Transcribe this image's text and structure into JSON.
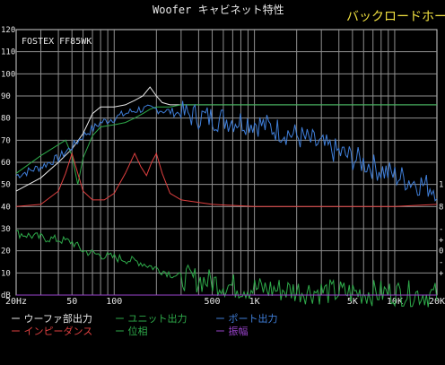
{
  "title": "Woofer キャビネット特性",
  "subtitle": "バックロードホーン",
  "chart_data": {
    "type": "line",
    "title": "Woofer キャビネット特性",
    "subtitle": "バックロードホーン",
    "annotation": "FOSTEX FF85WK",
    "x_scale": "log",
    "xlim": [
      20,
      20000
    ],
    "ylim": [
      0,
      120
    ],
    "grid": true,
    "x_tick_labels": [
      {
        "v": 20,
        "t": "20Hz"
      },
      {
        "v": 50,
        "t": "50"
      },
      {
        "v": 100,
        "t": "100"
      },
      {
        "v": 500,
        "t": "500"
      },
      {
        "v": 1000,
        "t": "1K"
      },
      {
        "v": 5000,
        "t": "5K"
      },
      {
        "v": 10000,
        "t": "10K"
      },
      {
        "v": 20000,
        "t": "20K"
      }
    ],
    "y_tick_labels": [
      {
        "v": 120,
        "t": "120"
      },
      {
        "v": 110,
        "t": "110"
      },
      {
        "v": 100,
        "t": "100"
      },
      {
        "v": 90,
        "t": "90"
      },
      {
        "v": 80,
        "t": "80"
      },
      {
        "v": 70,
        "t": "70"
      },
      {
        "v": 60,
        "t": "60"
      },
      {
        "v": 50,
        "t": "50"
      },
      {
        "v": 40,
        "t": "40"
      },
      {
        "v": 30,
        "t": "30"
      },
      {
        "v": 20,
        "t": "20"
      },
      {
        "v": 10,
        "t": "10"
      },
      {
        "v": 0,
        "t": "dB"
      }
    ],
    "right_tick_labels": [
      {
        "v": 50,
        "t": "1"
      },
      {
        "v": 40,
        "t": "8"
      },
      {
        "v": 30,
        "t": "-"
      },
      {
        "v": 25,
        "t": "+"
      },
      {
        "v": 20,
        "t": "0"
      },
      {
        "v": 15,
        "t": "-"
      },
      {
        "v": 10,
        "t": "+"
      }
    ],
    "series": [
      {
        "name": "ウーファ部出力",
        "color": "#e8e8e8",
        "style": "smooth",
        "points": [
          [
            20,
            47
          ],
          [
            30,
            53
          ],
          [
            40,
            60
          ],
          [
            50,
            66
          ],
          [
            60,
            73
          ],
          [
            70,
            82
          ],
          [
            80,
            85
          ],
          [
            100,
            85
          ],
          [
            120,
            86
          ],
          [
            140,
            88
          ],
          [
            160,
            90
          ],
          [
            180,
            94
          ],
          [
            200,
            90
          ],
          [
            220,
            87
          ],
          [
            250,
            86
          ],
          [
            300,
            86
          ],
          [
            350,
            86
          ],
          [
            400,
            86
          ],
          [
            500,
            86
          ],
          [
            700,
            86
          ],
          [
            1000,
            86
          ],
          [
            2000,
            86
          ],
          [
            5000,
            86
          ],
          [
            10000,
            86
          ],
          [
            20000,
            86
          ]
        ]
      },
      {
        "name": "ユニット出力",
        "color": "#2eaa4a",
        "style": "smooth",
        "points": [
          [
            20,
            55
          ],
          [
            30,
            63
          ],
          [
            40,
            68
          ],
          [
            45,
            70
          ],
          [
            50,
            63
          ],
          [
            55,
            50
          ],
          [
            60,
            62
          ],
          [
            70,
            72
          ],
          [
            80,
            76
          ],
          [
            100,
            77
          ],
          [
            120,
            78
          ],
          [
            140,
            80
          ],
          [
            160,
            82
          ],
          [
            180,
            84
          ],
          [
            200,
            85
          ],
          [
            250,
            85
          ],
          [
            300,
            86
          ],
          [
            500,
            86
          ],
          [
            1000,
            86
          ],
          [
            20000,
            86
          ]
        ]
      },
      {
        "name": "ポート出力",
        "color": "#3f7ed8",
        "style": "jagged",
        "points": [
          [
            20,
            54
          ],
          [
            30,
            58
          ],
          [
            40,
            62
          ],
          [
            50,
            67
          ],
          [
            60,
            72
          ],
          [
            70,
            75
          ],
          [
            80,
            78
          ],
          [
            100,
            80
          ],
          [
            120,
            82
          ],
          [
            150,
            84
          ],
          [
            200,
            84
          ],
          [
            300,
            82
          ],
          [
            500,
            80
          ],
          [
            1000,
            78
          ],
          [
            2000,
            72
          ],
          [
            5000,
            62
          ],
          [
            10000,
            54
          ],
          [
            20000,
            48
          ]
        ]
      },
      {
        "name": "インピーダンス",
        "color": "#e04040",
        "style": "smooth",
        "points": [
          [
            20,
            40
          ],
          [
            30,
            41
          ],
          [
            40,
            47
          ],
          [
            45,
            55
          ],
          [
            50,
            64
          ],
          [
            55,
            55
          ],
          [
            60,
            47
          ],
          [
            70,
            43
          ],
          [
            85,
            43
          ],
          [
            100,
            46
          ],
          [
            120,
            55
          ],
          [
            140,
            64
          ],
          [
            155,
            58
          ],
          [
            170,
            54
          ],
          [
            185,
            60
          ],
          [
            200,
            64
          ],
          [
            220,
            55
          ],
          [
            250,
            46
          ],
          [
            300,
            43
          ],
          [
            500,
            41
          ],
          [
            1000,
            40
          ],
          [
            2000,
            40
          ],
          [
            5000,
            40
          ],
          [
            10000,
            40
          ],
          [
            20000,
            41
          ]
        ]
      },
      {
        "name": "位相",
        "color": "#2eaa4a",
        "style": "jagged",
        "points": [
          [
            20,
            28
          ],
          [
            30,
            26
          ],
          [
            40,
            25
          ],
          [
            50,
            24
          ],
          [
            60,
            20
          ],
          [
            80,
            18
          ],
          [
            100,
            17
          ],
          [
            150,
            15
          ],
          [
            200,
            12
          ],
          [
            300,
            8
          ],
          [
            500,
            6
          ],
          [
            700,
            4
          ],
          [
            1000,
            3
          ],
          [
            2000,
            2
          ],
          [
            5000,
            1
          ],
          [
            10000,
            1
          ],
          [
            20000,
            0
          ]
        ]
      },
      {
        "name": "振幅",
        "color": "#9a44cc",
        "style": "smooth",
        "points": [
          [
            20,
            0
          ],
          [
            100,
            0
          ],
          [
            1000,
            0
          ],
          [
            20000,
            0
          ]
        ]
      }
    ]
  },
  "legend": [
    {
      "text": "ー ウーファ部出力",
      "color": "#e8e8e8"
    },
    {
      "text": "ー ユニット出力",
      "color": "#2eaa4a"
    },
    {
      "text": "ー ポート出力",
      "color": "#3f7ed8"
    },
    {
      "text": "ー インピーダンス",
      "color": "#e04040"
    },
    {
      "text": "ー 位相",
      "color": "#2eaa4a"
    },
    {
      "text": "ー 振幅",
      "color": "#9a44cc"
    }
  ]
}
